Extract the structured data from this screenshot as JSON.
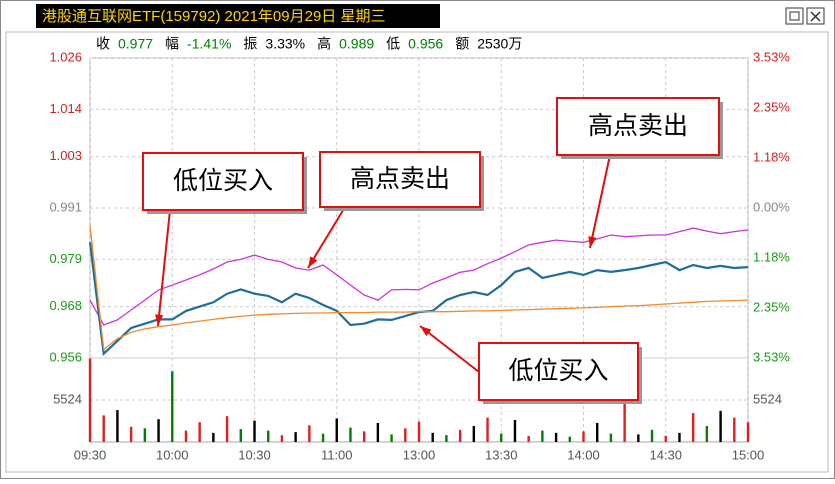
{
  "chart_data": {
    "type": "line",
    "title": "港股通互联网ETF(159792) 2021年09月29日 星期三",
    "info": [
      {
        "label": "收",
        "value": "0.977",
        "color": "#008000"
      },
      {
        "label": "幅",
        "value": "-1.41%",
        "color": "#008000"
      },
      {
        "label": "振",
        "value": "3.33%",
        "color": "#000000"
      },
      {
        "label": "高",
        "value": "0.989",
        "color": "#008000"
      },
      {
        "label": "低",
        "value": "0.956",
        "color": "#008000"
      },
      {
        "label": "额",
        "value": "2530万",
        "color": "#000000"
      }
    ],
    "xlim": [
      0,
      240
    ],
    "xticks": [
      {
        "value": 0,
        "label": "09:30"
      },
      {
        "value": 30,
        "label": "10:00"
      },
      {
        "value": 60,
        "label": "10:30"
      },
      {
        "value": 90,
        "label": "11:00"
      },
      {
        "value": 120,
        "label": "13:00"
      },
      {
        "value": 150,
        "label": "13:30"
      },
      {
        "value": 180,
        "label": "14:00"
      },
      {
        "value": 210,
        "label": "14:30"
      },
      {
        "value": 240,
        "label": "15:00"
      }
    ],
    "ylim": [
      0.956,
      1.026
    ],
    "yticks": [
      1.026,
      1.014,
      1.003,
      0.991,
      0.979,
      0.968,
      0.956
    ],
    "y2lim": [
      -3.53,
      3.53
    ],
    "y2ticks": [
      {
        "value": 3.53,
        "label": "3.53%"
      },
      {
        "value": 2.35,
        "label": "2.35%"
      },
      {
        "value": 1.18,
        "label": "1.18%"
      },
      {
        "value": 0,
        "label": "0.00%"
      },
      {
        "value": -1.18,
        "label": "1.18%"
      },
      {
        "value": -2.35,
        "label": "2.35%"
      },
      {
        "value": -3.53,
        "label": "3.53%"
      }
    ],
    "grid": true,
    "x": [
      0,
      5,
      10,
      15,
      20,
      25,
      30,
      35,
      40,
      45,
      50,
      55,
      60,
      65,
      70,
      75,
      80,
      85,
      90,
      95,
      100,
      105,
      110,
      115,
      120,
      125,
      130,
      135,
      140,
      145,
      150,
      155,
      160,
      165,
      170,
      175,
      180,
      185,
      190,
      195,
      200,
      205,
      210,
      215,
      220,
      225,
      230,
      235,
      240
    ],
    "series": [
      {
        "color": "#cc33dd",
        "values": [
          0.9695,
          0.9637,
          0.9649,
          0.9672,
          0.9695,
          0.9719,
          0.973,
          0.9742,
          0.9754,
          0.9768,
          0.9784,
          0.979,
          0.98,
          0.979,
          0.9784,
          0.977,
          0.9765,
          0.9777,
          0.9754,
          0.973,
          0.9707,
          0.9695,
          0.9719,
          0.972,
          0.9719,
          0.9735,
          0.9747,
          0.976,
          0.9765,
          0.978,
          0.9793,
          0.9808,
          0.9824,
          0.983,
          0.9835,
          0.9832,
          0.983,
          0.9838,
          0.9847,
          0.9843,
          0.9845,
          0.9847,
          0.9847,
          0.9855,
          0.9863,
          0.9856,
          0.985,
          0.9855,
          0.9859
        ]
      },
      {
        "color": "#1f6e99",
        "values": [
          0.983,
          0.957,
          0.96,
          0.963,
          0.964,
          0.965,
          0.965,
          0.967,
          0.968,
          0.969,
          0.971,
          0.972,
          0.971,
          0.9705,
          0.969,
          0.971,
          0.97,
          0.9684,
          0.967,
          0.9637,
          0.964,
          0.965,
          0.9649,
          0.9658,
          0.9667,
          0.967,
          0.9695,
          0.9707,
          0.9714,
          0.9707,
          0.973,
          0.9761,
          0.977,
          0.9747,
          0.9754,
          0.9761,
          0.9754,
          0.9765,
          0.9761,
          0.9765,
          0.977,
          0.9777,
          0.9784,
          0.9765,
          0.9777,
          0.977,
          0.9775,
          0.977,
          0.9772
        ]
      },
      {
        "color": "#f08a2a",
        "values": [
          0.987,
          0.958,
          0.9605,
          0.962,
          0.9628,
          0.9633,
          0.9637,
          0.9642,
          0.9646,
          0.965,
          0.9654,
          0.9657,
          0.966,
          0.9662,
          0.9663,
          0.9664,
          0.9665,
          0.9665,
          0.9666,
          0.9666,
          0.9666,
          0.9667,
          0.9667,
          0.9667,
          0.9668,
          0.9668,
          0.9668,
          0.9669,
          0.967,
          0.967,
          0.9671,
          0.9672,
          0.9673,
          0.9674,
          0.9675,
          0.9676,
          0.9677,
          0.9678,
          0.968,
          0.9681,
          0.9682,
          0.9684,
          0.9686,
          0.9688,
          0.969,
          0.9692,
          0.9693,
          0.9694,
          0.9695
        ]
      }
    ],
    "volume": {
      "ylim": [
        0,
        11048
      ],
      "yticks": [
        5524
      ],
      "values": [
        11000,
        3500,
        4200,
        2000,
        1800,
        3000,
        9300,
        1500,
        2600,
        1200,
        3400,
        1700,
        2800,
        1500,
        900,
        1300,
        2200,
        1100,
        3100,
        1900,
        1400,
        2500,
        1000,
        1800,
        2700,
        1200,
        900,
        1600,
        2100,
        3200,
        1100,
        2900,
        800,
        1500,
        1200,
        700,
        1400,
        2500,
        1100,
        6300,
        1000,
        1600,
        800,
        1200,
        3800,
        2100,
        4100,
        3200,
        2600
      ],
      "colors": [
        "#e02020",
        "#e02020",
        "#000000",
        "#e02020",
        "#008000",
        "#000000",
        "#008000",
        "#e02020",
        "#e02020",
        "#000000",
        "#e02020",
        "#008000",
        "#000000",
        "#008000",
        "#e02020",
        "#000000",
        "#e02020",
        "#008000",
        "#000000",
        "#008000",
        "#e02020",
        "#000000",
        "#008000",
        "#e02020",
        "#e02020",
        "#000000",
        "#008000",
        "#e02020",
        "#000000",
        "#e02020",
        "#008000",
        "#000000",
        "#e02020",
        "#008000",
        "#000000",
        "#008000",
        "#e02020",
        "#000000",
        "#008000",
        "#e02020",
        "#000000",
        "#008000",
        "#e02020",
        "#000000",
        "#e02020",
        "#008000",
        "#000000",
        "#e02020",
        "#e02020"
      ]
    },
    "annotations": [
      "低位买入",
      "高点卖出",
      "高点卖出",
      "低位买入"
    ]
  }
}
